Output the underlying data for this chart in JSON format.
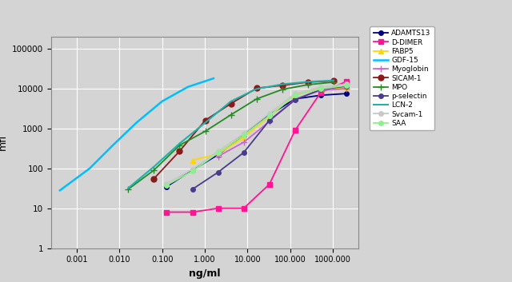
{
  "xlabel": "ng/ml",
  "ylabel": "mfi",
  "series": [
    {
      "label": "ADAMTS13",
      "color": "#000080",
      "marker": "o",
      "markersize": 4,
      "linewidth": 1.3,
      "x": [
        0.128,
        0.512,
        2.048,
        8.192,
        32.768,
        131.072,
        524.288,
        2097.152
      ],
      "y": [
        35,
        90,
        220,
        700,
        2200,
        5500,
        6800,
        7500
      ]
    },
    {
      "label": "D-DIMER",
      "color": "#FF1493",
      "marker": "s",
      "markersize": 4,
      "linewidth": 1.3,
      "x": [
        0.128,
        0.512,
        2.048,
        8.192,
        32.768,
        131.072,
        524.288,
        2097.152
      ],
      "y": [
        8,
        8,
        10,
        10,
        40,
        900,
        8000,
        15000
      ]
    },
    {
      "label": "FABP5",
      "color": "#FFD700",
      "marker": "^",
      "markersize": 5,
      "linewidth": 1.3,
      "x": [
        0.512,
        2.048,
        8.192,
        32.768,
        131.072,
        524.288,
        2097.152
      ],
      "y": [
        160,
        230,
        600,
        2000,
        7000,
        10000,
        10500
      ]
    },
    {
      "label": "GDF-15",
      "color": "#00BFFF",
      "marker": null,
      "markersize": 0,
      "linewidth": 1.8,
      "x": [
        0.0004,
        0.002,
        0.007,
        0.025,
        0.1,
        0.4,
        1.6
      ],
      "y": [
        28,
        100,
        380,
        1400,
        4800,
        11000,
        18000
      ]
    },
    {
      "label": "Myoglobin",
      "color": "#CC66CC",
      "marker": "+",
      "markersize": 6,
      "linewidth": 1.3,
      "x": [
        2.048,
        8.192,
        32.768,
        131.072,
        524.288,
        2097.152
      ],
      "y": [
        200,
        450,
        1500,
        5500,
        9000,
        10000
      ]
    },
    {
      "label": "SICAM-1",
      "color": "#8B1A1A",
      "marker": "o",
      "markersize": 5,
      "linewidth": 1.3,
      "x": [
        0.064,
        0.256,
        1.024,
        4.096,
        16.384,
        65.536,
        262.144,
        1048.576
      ],
      "y": [
        55,
        270,
        1600,
        4200,
        10200,
        12000,
        14500,
        15500
      ]
    },
    {
      "label": "MPO",
      "color": "#228B22",
      "marker": "+",
      "markersize": 6,
      "linewidth": 1.3,
      "x": [
        0.016,
        0.064,
        0.256,
        1.024,
        4.096,
        16.384,
        65.536,
        262.144,
        1048.576
      ],
      "y": [
        30,
        90,
        380,
        850,
        2200,
        5500,
        9500,
        12500,
        14500
      ]
    },
    {
      "label": "p-selectin",
      "color": "#483D8B",
      "marker": "o",
      "markersize": 4,
      "linewidth": 1.3,
      "x": [
        0.512,
        2.048,
        8.192,
        32.768,
        131.072,
        524.288,
        2097.152
      ],
      "y": [
        30,
        80,
        250,
        1600,
        5200,
        9500,
        11500
      ]
    },
    {
      "label": "LCN-2",
      "color": "#20B2AA",
      "marker": null,
      "markersize": 0,
      "linewidth": 1.5,
      "x": [
        0.016,
        0.064,
        0.256,
        1.024,
        4.096,
        16.384,
        65.536,
        262.144,
        1048.576
      ],
      "y": [
        32,
        110,
        420,
        1400,
        4800,
        9800,
        12800,
        14800,
        16000
      ]
    },
    {
      "label": "Svcam-1",
      "color": "#C8C8C8",
      "marker": "o",
      "markersize": 4,
      "linewidth": 1.3,
      "x": [
        0.128,
        0.512,
        2.048,
        8.192,
        32.768,
        131.072,
        524.288,
        2097.152
      ],
      "y": [
        42,
        95,
        270,
        750,
        2400,
        7500,
        10800,
        13000
      ]
    },
    {
      "label": "SAA",
      "color": "#90EE90",
      "marker": "o",
      "markersize": 4,
      "linewidth": 1.3,
      "x": [
        0.128,
        0.512,
        2.048,
        8.192,
        32.768,
        131.072,
        524.288,
        2097.152
      ],
      "y": [
        38,
        85,
        245,
        680,
        2100,
        6800,
        9800,
        12000
      ]
    }
  ],
  "xlim": [
    0.00025,
    4000
  ],
  "ylim": [
    1,
    200000
  ],
  "xticks": [
    0.001,
    0.01,
    0.1,
    1.0,
    10.0,
    100.0,
    1000.0
  ],
  "xtick_labels": [
    "0.001",
    "0.010",
    "0.100",
    "1.000",
    "10.000",
    "100.000",
    "1000.000"
  ],
  "yticks": [
    1,
    10,
    100,
    1000,
    10000,
    100000
  ],
  "ytick_labels": [
    "1",
    "10",
    "100",
    "1000",
    "10000",
    "100000"
  ],
  "bg_color": "#d4d4d4"
}
